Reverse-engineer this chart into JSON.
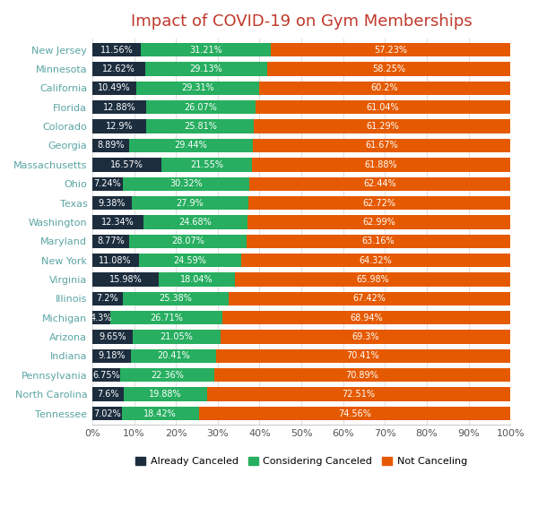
{
  "title": "Impact of COVID-19 on Gym Memberships",
  "title_color": "#c0392b",
  "states": [
    "New Jersey",
    "Minnesota",
    "California",
    "Florida",
    "Colorado",
    "Georgia",
    "Massachusetts",
    "Ohio",
    "Texas",
    "Washington",
    "Maryland",
    "New York",
    "Virginia",
    "Illinois",
    "Michigan",
    "Arizona",
    "Indiana",
    "Pennsylvania",
    "North Carolina",
    "Tennessee"
  ],
  "already_canceled": [
    11.56,
    12.62,
    10.49,
    12.88,
    12.9,
    8.89,
    16.57,
    7.24,
    9.38,
    12.34,
    8.77,
    11.08,
    15.98,
    7.2,
    4.3,
    9.65,
    9.18,
    6.75,
    7.6,
    7.02
  ],
  "considering_canceled": [
    31.21,
    29.13,
    29.31,
    26.07,
    25.81,
    29.44,
    21.55,
    30.32,
    27.9,
    24.68,
    28.07,
    24.59,
    18.04,
    25.38,
    26.71,
    21.05,
    20.41,
    22.36,
    19.88,
    18.42
  ],
  "not_canceling": [
    57.23,
    58.25,
    60.2,
    61.04,
    61.29,
    61.67,
    61.88,
    62.44,
    62.72,
    62.99,
    63.16,
    64.32,
    65.98,
    67.42,
    68.94,
    69.3,
    70.41,
    70.89,
    72.51,
    74.56
  ],
  "color_canceled": "#1c2d3e",
  "color_considering": "#27ae60",
  "color_not_canceling": "#e55a00",
  "state_label_color": "#5ba4a4",
  "bar_height": 0.72,
  "figsize": [
    6.0,
    5.76
  ],
  "dpi": 100,
  "label_fontsize": 7.0,
  "state_fontsize": 8.0,
  "title_fontsize": 13,
  "xlabel_fontsize": 8,
  "legend_fontsize": 8
}
